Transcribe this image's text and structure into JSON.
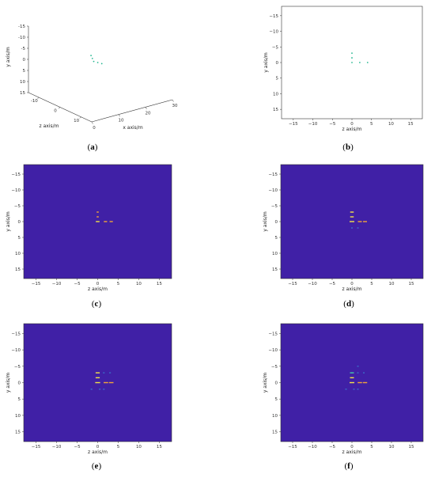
{
  "colors": {
    "background": "#4020a6",
    "point": "#28b892",
    "frame": "#333333",
    "hot": "#f2e34a",
    "warm": "#f0a43a",
    "cool": "#43c8a8",
    "faint": "#3a6cc8"
  },
  "chart_data": [
    {
      "id": "a",
      "type": "scatter3d",
      "caption_letter": "a",
      "xlabel": "x axis/m",
      "ylabel": "y axis/m",
      "zlabel": "z axis/m",
      "x_ticks": [
        "0",
        "10",
        "20",
        "30"
      ],
      "y_ticks": [
        "-15",
        "-10",
        "-5",
        "0",
        "5",
        "10",
        "15"
      ],
      "z_ticks": [
        "-10",
        "0",
        "10"
      ],
      "points": [
        {
          "x": 11.5,
          "y": -4.5,
          "z": 0
        },
        {
          "x": 12.0,
          "y": -3.0,
          "z": 0
        },
        {
          "x": 12.5,
          "y": -1.5,
          "z": 0
        },
        {
          "x": 14.0,
          "y": -0.5,
          "z": 0
        },
        {
          "x": 15.5,
          "y": 0.5,
          "z": 0
        }
      ]
    },
    {
      "id": "b",
      "type": "scatter",
      "caption_letter": "b",
      "xlabel": "z axis/m",
      "ylabel": "y axis/m",
      "xlim": [
        -18,
        18
      ],
      "ylim": [
        -18,
        18
      ],
      "x_ticks": [
        -15,
        -10,
        -5,
        0,
        5,
        10,
        15
      ],
      "y_ticks": [
        -15,
        -10,
        -5,
        0,
        5,
        10,
        15
      ],
      "y_inverted": true,
      "points": [
        {
          "x": 0,
          "y": -3
        },
        {
          "x": 0,
          "y": -1.5
        },
        {
          "x": 0,
          "y": 0
        },
        {
          "x": 2,
          "y": 0
        },
        {
          "x": 4,
          "y": 0
        }
      ]
    },
    {
      "id": "c",
      "type": "heatmap",
      "caption_letter": "c",
      "xlabel": "z axis/m",
      "ylabel": "y axis/m",
      "xlim": [
        -18,
        18
      ],
      "ylim": [
        -18,
        18
      ],
      "x_ticks": [
        -15,
        -10,
        -5,
        0,
        5,
        10,
        15
      ],
      "y_ticks": [
        -15,
        -10,
        -5,
        0,
        5,
        10,
        15
      ],
      "y_inverted": true,
      "spots": [
        {
          "x": 0,
          "y": -3,
          "w": 0.5,
          "level": "warm"
        },
        {
          "x": 0,
          "y": -1.5,
          "w": 0.5,
          "level": "warm"
        },
        {
          "x": 0,
          "y": 0,
          "w": 0.9,
          "level": "hot"
        },
        {
          "x": 1.9,
          "y": 0,
          "w": 0.8,
          "level": "warm"
        },
        {
          "x": 3.3,
          "y": 0,
          "w": 0.8,
          "level": "warm"
        }
      ]
    },
    {
      "id": "d",
      "type": "heatmap",
      "caption_letter": "d",
      "xlabel": "z axis/m",
      "ylabel": "y axis/m",
      "xlim": [
        -18,
        18
      ],
      "ylim": [
        -18,
        18
      ],
      "x_ticks": [
        -15,
        -10,
        -5,
        0,
        5,
        10,
        15
      ],
      "y_ticks": [
        -15,
        -10,
        -5,
        0,
        5,
        10,
        15
      ],
      "y_inverted": true,
      "spots": [
        {
          "x": 0,
          "y": -3,
          "w": 0.9,
          "level": "hot"
        },
        {
          "x": 0,
          "y": -1.5,
          "w": 0.9,
          "level": "hot"
        },
        {
          "x": 0,
          "y": 0,
          "w": 1.2,
          "level": "hot"
        },
        {
          "x": 2,
          "y": 0,
          "w": 1.0,
          "level": "warm"
        },
        {
          "x": 3.3,
          "y": 0,
          "w": 1.0,
          "level": "warm"
        },
        {
          "x": 0,
          "y": 2,
          "w": 0.4,
          "level": "faint"
        },
        {
          "x": 1.5,
          "y": 2,
          "w": 0.4,
          "level": "faint"
        }
      ]
    },
    {
      "id": "e",
      "type": "heatmap",
      "caption_letter": "e",
      "xlabel": "z axis/m",
      "ylabel": "y axis/m",
      "xlim": [
        -18,
        18
      ],
      "ylim": [
        -18,
        18
      ],
      "x_ticks": [
        -15,
        -10,
        -5,
        0,
        5,
        10,
        15
      ],
      "y_ticks": [
        -15,
        -10,
        -5,
        0,
        5,
        10,
        15
      ],
      "y_inverted": true,
      "spots": [
        {
          "x": 0,
          "y": -3,
          "w": 1.0,
          "level": "hot"
        },
        {
          "x": 0,
          "y": -1.5,
          "w": 1.0,
          "level": "hot"
        },
        {
          "x": 0,
          "y": 0,
          "w": 1.2,
          "level": "hot"
        },
        {
          "x": 2,
          "y": 0,
          "w": 1.1,
          "level": "warm"
        },
        {
          "x": 3.3,
          "y": 0,
          "w": 1.1,
          "level": "warm"
        },
        {
          "x": 1.5,
          "y": -3,
          "w": 0.4,
          "level": "faint"
        },
        {
          "x": 3,
          "y": -3,
          "w": 0.4,
          "level": "faint"
        },
        {
          "x": -1.5,
          "y": 2,
          "w": 0.4,
          "level": "faint"
        },
        {
          "x": 0.5,
          "y": 2,
          "w": 0.4,
          "level": "faint"
        },
        {
          "x": 1.5,
          "y": 2,
          "w": 0.4,
          "level": "faint"
        }
      ]
    },
    {
      "id": "f",
      "type": "heatmap",
      "caption_letter": "f",
      "xlabel": "z axis/m",
      "ylabel": "y axis/m",
      "xlim": [
        -18,
        18
      ],
      "ylim": [
        -18,
        18
      ],
      "x_ticks": [
        -15,
        -10,
        -5,
        0,
        5,
        10,
        15
      ],
      "y_ticks": [
        -15,
        -10,
        -5,
        0,
        5,
        10,
        15
      ],
      "y_inverted": true,
      "spots": [
        {
          "x": 0,
          "y": -3,
          "w": 1.0,
          "level": "cool"
        },
        {
          "x": 0,
          "y": -1.5,
          "w": 1.0,
          "level": "hot"
        },
        {
          "x": 0,
          "y": 0,
          "w": 1.2,
          "level": "hot"
        },
        {
          "x": 2,
          "y": 0,
          "w": 1.1,
          "level": "warm"
        },
        {
          "x": 3.3,
          "y": 0,
          "w": 1.1,
          "level": "warm"
        },
        {
          "x": 1.5,
          "y": -3,
          "w": 0.4,
          "level": "faint"
        },
        {
          "x": 3,
          "y": -3,
          "w": 0.4,
          "level": "faint"
        },
        {
          "x": 1.5,
          "y": -5,
          "w": 0.4,
          "level": "faint"
        },
        {
          "x": -1.5,
          "y": 2,
          "w": 0.4,
          "level": "faint"
        },
        {
          "x": 0.5,
          "y": 2,
          "w": 0.4,
          "level": "faint"
        },
        {
          "x": 1.5,
          "y": 2,
          "w": 0.4,
          "level": "faint"
        }
      ]
    }
  ]
}
